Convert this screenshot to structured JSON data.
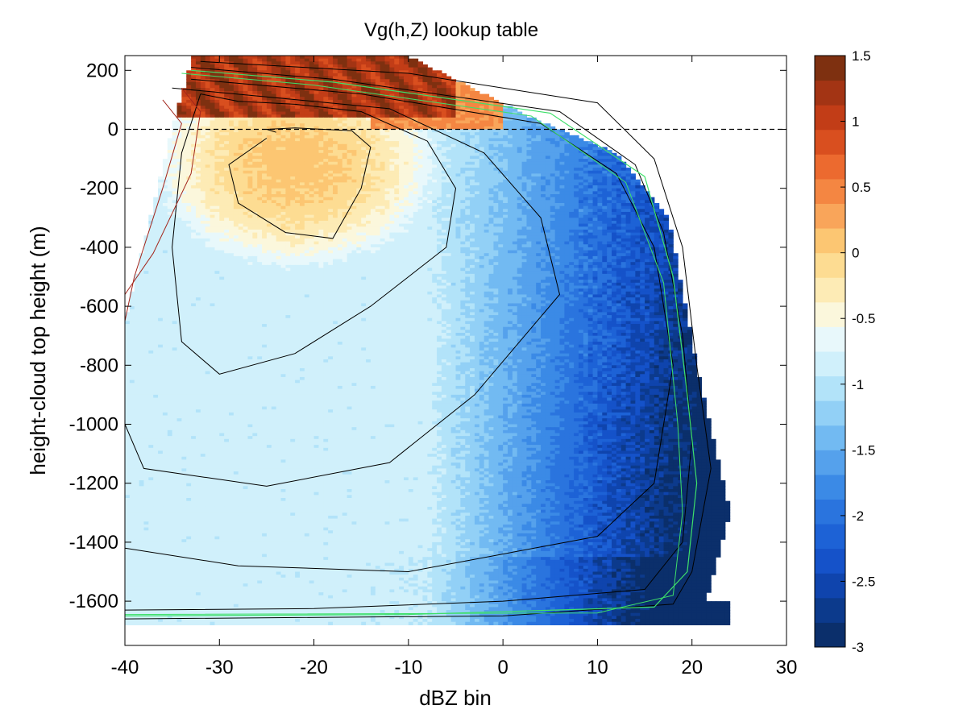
{
  "chart_data": {
    "type": "heatmap",
    "title": "Vg(h,Z) lookup table",
    "xlabel": "dBZ bin",
    "ylabel": "height-cloud top height (m)",
    "xlim": [
      -40,
      30
    ],
    "ylim": [
      -1750,
      250
    ],
    "x_ticks": [
      -40,
      -30,
      -20,
      -10,
      0,
      10,
      20,
      30
    ],
    "y_ticks": [
      200,
      0,
      -200,
      -400,
      -600,
      -800,
      -1000,
      -1200,
      -1400,
      -1600
    ],
    "reference_line": {
      "y": 0,
      "style": "dashed",
      "color": "#000000"
    },
    "colorbar": {
      "min": -3,
      "max": 1.5,
      "ticks": [
        1.5,
        1,
        0.5,
        0,
        -0.5,
        -1,
        -1.5,
        -2,
        -2.5,
        -3
      ],
      "tick_labels": [
        "1.5",
        "1",
        "0.5",
        "0",
        "-0.5",
        "-1",
        "-1.5",
        "-2",
        "-2.5",
        "-3"
      ],
      "colors_bottom_to_top": [
        "#0b2f6b",
        "#0c3a8c",
        "#0f44ad",
        "#1552c9",
        "#1d62d6",
        "#2a74de",
        "#3b8ae6",
        "#55a1ec",
        "#72baf2",
        "#92d0f6",
        "#b2e3f9",
        "#d0f0fb",
        "#e8f8fb",
        "#fbf7dc",
        "#fdebb5",
        "#fddc92",
        "#fcc672",
        "#f9a55a",
        "#f48642",
        "#ec6a2f",
        "#d94f1f",
        "#c23d17",
        "#a33414",
        "#7e3010"
      ]
    },
    "field_model": {
      "regions": [
        {
          "name": "upper warm core",
          "x_center": -22,
          "y_center": -120,
          "value": 0.1
        },
        {
          "name": "cloud top ridge",
          "x_range": [
            -30,
            -5
          ],
          "y_range": [
            40,
            200
          ],
          "value": 1.2
        },
        {
          "name": "reflectivity gradient",
          "x_range": [
            -10,
            22
          ],
          "value_range": [
            -0.9,
            -3.0
          ]
        }
      ],
      "contour_levels": [
        -0.75,
        -1.0,
        -1.25,
        -1.5,
        -1.75,
        -2.0,
        -2.5,
        -2.8
      ]
    }
  }
}
